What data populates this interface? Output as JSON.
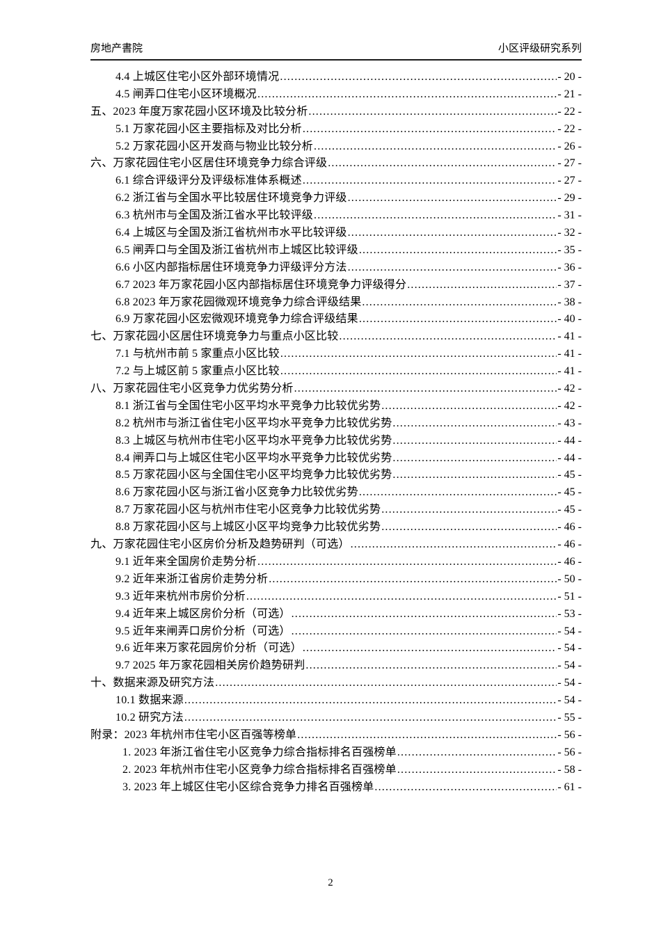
{
  "header": {
    "left": "房地产書院",
    "right": "小区评级研究系列"
  },
  "toc": {
    "entries": [
      {
        "level": 1,
        "label": "4.4 上城区住宅小区外部环境情况",
        "page": "- 20 -"
      },
      {
        "level": 1,
        "label": "4.5 闸弄口住宅小区环境概况",
        "page": "- 21 -"
      },
      {
        "level": 0,
        "label": "五、2023 年度万家花园小区环境及比较分析",
        "page": "- 22 -"
      },
      {
        "level": 1,
        "label": "5.1 万家花园小区主要指标及对比分析",
        "page": "- 22 -"
      },
      {
        "level": 1,
        "label": "5.2 万家花园小区开发商与物业比较分析",
        "page": "- 26 -"
      },
      {
        "level": 0,
        "label": "六、万家花园住宅小区居住环境竞争力综合评级",
        "page": "- 27 -"
      },
      {
        "level": 1,
        "label": "6.1 综合评级评分及评级标准体系概述",
        "page": "- 27 -"
      },
      {
        "level": 1,
        "label": "6.2 浙江省与全国水平比较居住环境竞争力评级",
        "page": "- 29 -"
      },
      {
        "level": 1,
        "label": "6.3 杭州市与全国及浙江省水平比较评级",
        "page": "- 31 -"
      },
      {
        "level": 1,
        "label": "6.4 上城区与全国及浙江省杭州市水平比较评级",
        "page": "- 32 -"
      },
      {
        "level": 1,
        "label": "6.5 闸弄口与全国及浙江省杭州市上城区比较评级",
        "page": "- 35 -"
      },
      {
        "level": 1,
        "label": "6.6 小区内部指标居住环境竞争力评级评分方法",
        "page": "- 36 -"
      },
      {
        "level": 1,
        "label": "6.7 2023 年万家花园小区内部指标居住环境竞争力评级得分",
        "page": "- 37 -"
      },
      {
        "level": 1,
        "label": "6.8 2023 年万家花园微观环境竞争力综合评级结果",
        "page": "- 38 -"
      },
      {
        "level": 1,
        "label": "6.9 万家花园小区宏微观环境竞争力综合评级结果",
        "page": "- 40 -"
      },
      {
        "level": 0,
        "label": "七、万家花园小区居住环境竞争力与重点小区比较",
        "page": "- 41 -"
      },
      {
        "level": 1,
        "label": "7.1 与杭州市前 5 家重点小区比较",
        "page": "- 41 -"
      },
      {
        "level": 1,
        "label": "7.2 与上城区前 5 家重点小区比较",
        "page": "- 41 -"
      },
      {
        "level": 0,
        "label": "八、万家花园住宅小区竞争力优劣势分析",
        "page": "- 42 -"
      },
      {
        "level": 1,
        "label": "8.1 浙江省与全国住宅小区平均水平竞争力比较优劣势",
        "page": "- 42 -"
      },
      {
        "level": 1,
        "label": "8.2 杭州市与浙江省住宅小区平均水平竞争力比较优劣势",
        "page": "- 43 -"
      },
      {
        "level": 1,
        "label": "8.3 上城区与杭州市住宅小区平均水平竞争力比较优劣势",
        "page": "- 44 -"
      },
      {
        "level": 1,
        "label": "8.4 闸弄口与上城区住宅小区平均水平竞争力比较优劣势",
        "page": "- 44 -"
      },
      {
        "level": 1,
        "label": "8.5 万家花园小区与全国住宅小区平均竞争力比较优劣势",
        "page": "- 45 -"
      },
      {
        "level": 1,
        "label": "8.6 万家花园小区与浙江省小区竞争力比较优劣势",
        "page": "- 45 -"
      },
      {
        "level": 1,
        "label": "8.7 万家花园小区与杭州市住宅小区竞争力比较优劣势",
        "page": "- 45 -"
      },
      {
        "level": 1,
        "label": "8.8 万家花园小区与上城区小区平均竞争力比较优劣势",
        "page": "- 46 -"
      },
      {
        "level": 0,
        "label": "九、万家花园住宅小区房价分析及趋势研判（可选）",
        "page": "- 46 -"
      },
      {
        "level": 1,
        "label": "9.1 近年来全国房价走势分析",
        "page": "- 46 -"
      },
      {
        "level": 1,
        "label": "9.2 近年来浙江省房价走势分析",
        "page": "- 50 -"
      },
      {
        "level": 1,
        "label": "9.3 近年来杭州市房价分析",
        "page": "- 51 -"
      },
      {
        "level": 1,
        "label": "9.4 近年来上城区房价分析（可选）",
        "page": "- 53 -"
      },
      {
        "level": 1,
        "label": "9.5 近年来闸弄口房价分析（可选）",
        "page": "- 54 -"
      },
      {
        "level": 1,
        "label": "9.6 近年来万家花园房价分析（可选）",
        "page": "- 54 -"
      },
      {
        "level": 1,
        "label": "9.7 2025 年万家花园相关房价趋势研判",
        "page": "- 54 -"
      },
      {
        "level": 0,
        "label": "十、数据来源及研究方法",
        "page": "- 54 -"
      },
      {
        "level": 1,
        "label": "10.1 数据来源",
        "page": "- 54 -"
      },
      {
        "level": 1,
        "label": "10.2 研究方法",
        "page": "- 55 -"
      },
      {
        "level": 0,
        "label": "附录：2023 年杭州市住宅小区百强等榜单",
        "page": "- 56 -"
      },
      {
        "level": 2,
        "label": "1. 2023 年浙江省住宅小区竞争力综合指标排名百强榜单",
        "page": "- 56 -"
      },
      {
        "level": 2,
        "label": "2. 2023 年杭州市住宅小区竞争力综合指标排名百强榜单",
        "page": "- 58 -"
      },
      {
        "level": 2,
        "label": "3. 2023 年上城区住宅小区综合竞争力排名百强榜单",
        "page": "- 61 -"
      }
    ]
  },
  "footer": {
    "page_number": "2"
  }
}
